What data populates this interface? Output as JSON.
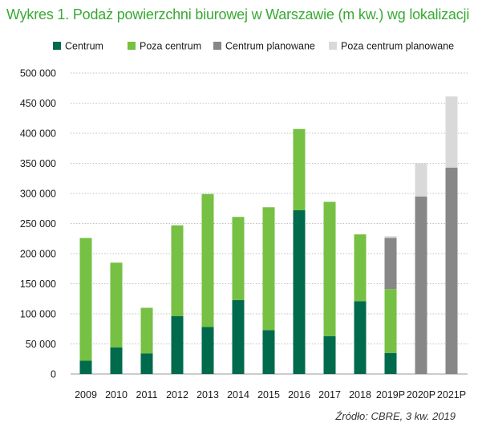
{
  "chart_data": {
    "type": "bar",
    "stacked": true,
    "title": "Wykres 1. Podaż powierzchni biurowej w Warszawie (m kw.) wg lokalizacji",
    "source": "Źródło: CBRE, 3 kw. 2019",
    "xlabel": "",
    "ylabel": "",
    "ylim": [
      0,
      500000
    ],
    "y_ticks": [
      0,
      50000,
      100000,
      150000,
      200000,
      250000,
      300000,
      350000,
      400000,
      450000,
      500000
    ],
    "y_tick_labels": [
      "0",
      "50 000",
      "100 000",
      "150 000",
      "200 000",
      "250 000",
      "300 000",
      "350 000",
      "400 000",
      "450 000",
      "500 000"
    ],
    "grid": true,
    "legend_position": "top",
    "categories": [
      "2009",
      "2010",
      "2011",
      "2012",
      "2013",
      "2014",
      "2015",
      "2016",
      "2017",
      "2018",
      "2019P",
      "2020P",
      "2021P"
    ],
    "series": [
      {
        "name": "Centrum",
        "color": "#006a4d",
        "values": [
          22000,
          44000,
          34000,
          96000,
          78000,
          123000,
          73000,
          272000,
          63000,
          121000,
          35000,
          0,
          0
        ]
      },
      {
        "name": "Poza centrum",
        "color": "#76c043",
        "values": [
          204000,
          141000,
          76000,
          151000,
          221000,
          138000,
          204000,
          135000,
          223000,
          111000,
          106000,
          0,
          0
        ]
      },
      {
        "name": "Centrum planowane",
        "color": "#878787",
        "values": [
          0,
          0,
          0,
          0,
          0,
          0,
          0,
          0,
          0,
          0,
          85000,
          295000,
          343000
        ]
      },
      {
        "name": "Poza centrum planowane",
        "color": "#d9d9d9",
        "values": [
          0,
          0,
          0,
          0,
          0,
          0,
          0,
          0,
          0,
          0,
          3000,
          55000,
          118000
        ]
      }
    ]
  }
}
